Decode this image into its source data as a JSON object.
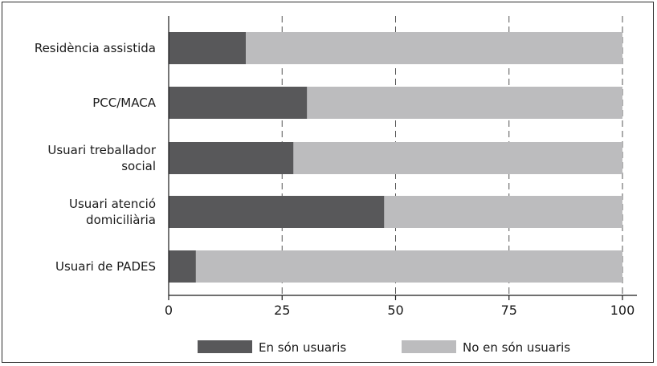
{
  "chart_data": {
    "type": "bar",
    "orientation": "horizontal",
    "stacked": true,
    "categories": [
      [
        "Residència assistida"
      ],
      [
        "PCC/MACA"
      ],
      [
        "Usuari treballador",
        "social"
      ],
      [
        "Usuari atenció",
        "domiciliària"
      ],
      [
        "Usuari de PADES"
      ]
    ],
    "series": [
      {
        "name": "En són usuaris",
        "values": [
          17,
          30.5,
          27.5,
          47.5,
          6
        ],
        "color": "#58585a"
      },
      {
        "name": "No en són usuaris",
        "values": [
          83,
          69.5,
          72.5,
          52.5,
          94
        ],
        "color": "#bcbcbe"
      }
    ],
    "xlim": [
      0,
      100
    ],
    "xticks": [
      "0",
      "25",
      "50",
      "75",
      "100"
    ],
    "xtick_values": [
      0,
      25,
      50,
      75,
      100
    ],
    "grid": "vertical dashed",
    "legend_position": "bottom",
    "title": "",
    "xlabel": "",
    "ylabel": ""
  }
}
